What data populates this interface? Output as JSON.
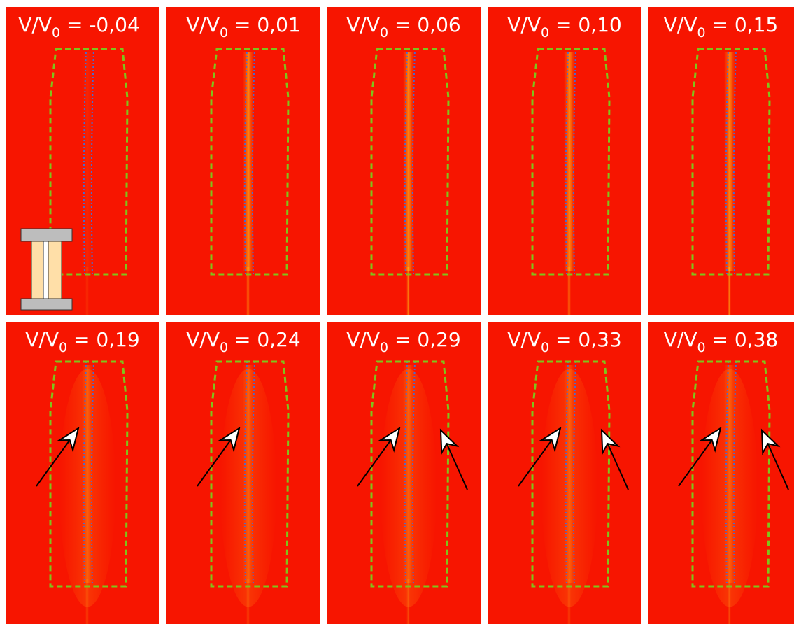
{
  "panels": [
    {
      "label": {
        "main": "V/V",
        "sub": "0",
        "rest": " = -0,04"
      }
    },
    {
      "label": {
        "main": "V/V",
        "sub": "0",
        "rest": " = 0,01"
      }
    },
    {
      "label": {
        "main": "V/V",
        "sub": "0",
        "rest": " = 0,06"
      }
    },
    {
      "label": {
        "main": "V/V",
        "sub": "0",
        "rest": " = 0,10"
      }
    },
    {
      "label": {
        "main": "V/V",
        "sub": "0",
        "rest": " = 0,15"
      }
    },
    {
      "label": {
        "main": "V/V",
        "sub": "0",
        "rest": " = 0,19"
      }
    },
    {
      "label": {
        "main": "V/V",
        "sub": "0",
        "rest": " = 0,24"
      }
    },
    {
      "label": {
        "main": "V/V",
        "sub": "0",
        "rest": " = 0,29"
      }
    },
    {
      "label": {
        "main": "V/V",
        "sub": "0",
        "rest": " = 0,33"
      }
    },
    {
      "label": {
        "main": "V/V",
        "sub": "0",
        "rest": " = 0,38"
      }
    }
  ]
}
